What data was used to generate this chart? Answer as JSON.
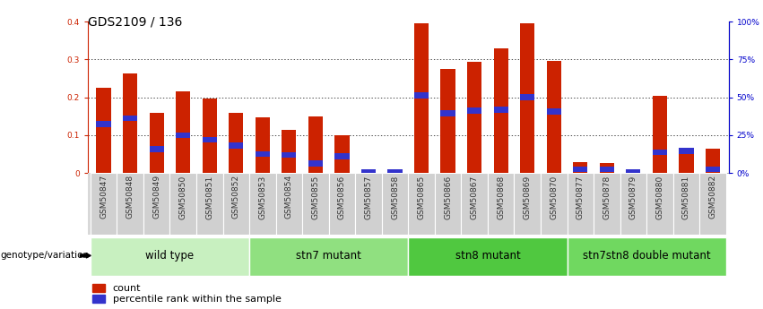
{
  "title": "GDS2109 / 136",
  "samples": [
    "GSM50847",
    "GSM50848",
    "GSM50849",
    "GSM50850",
    "GSM50851",
    "GSM50852",
    "GSM50853",
    "GSM50854",
    "GSM50855",
    "GSM50856",
    "GSM50857",
    "GSM50858",
    "GSM50865",
    "GSM50866",
    "GSM50867",
    "GSM50868",
    "GSM50869",
    "GSM50870",
    "GSM50877",
    "GSM50878",
    "GSM50879",
    "GSM50880",
    "GSM50881",
    "GSM50882"
  ],
  "red_values": [
    0.225,
    0.262,
    0.16,
    0.215,
    0.197,
    0.16,
    0.148,
    0.115,
    0.15,
    0.1,
    0.005,
    0.005,
    0.395,
    0.275,
    0.295,
    0.33,
    0.395,
    0.297,
    0.028,
    0.027,
    0.005,
    0.205,
    0.055,
    0.065
  ],
  "blue_values": [
    0.13,
    0.145,
    0.063,
    0.1,
    0.088,
    0.073,
    0.05,
    0.048,
    0.025,
    0.045,
    0.003,
    0.003,
    0.205,
    0.158,
    0.165,
    0.168,
    0.2,
    0.163,
    0.01,
    0.01,
    0.003,
    0.055,
    0.058,
    0.01
  ],
  "groups": [
    {
      "label": "wild type",
      "start": 0,
      "end": 6,
      "color": "#c8f0c0"
    },
    {
      "label": "stn7 mutant",
      "start": 6,
      "end": 12,
      "color": "#90e080"
    },
    {
      "label": "stn8 mutant",
      "start": 12,
      "end": 18,
      "color": "#50c840"
    },
    {
      "label": "stn7stn8 double mutant",
      "start": 18,
      "end": 24,
      "color": "#70d860"
    }
  ],
  "ylim": [
    0,
    0.4
  ],
  "yticks": [
    0.0,
    0.1,
    0.2,
    0.3,
    0.4
  ],
  "ytick_labels_left": [
    "0",
    "0.1",
    "0.2",
    "0.3",
    "0.4"
  ],
  "ytick_labels_right": [
    "0%",
    "25%",
    "50%",
    "75%",
    "100%"
  ],
  "red_color": "#cc2200",
  "blue_color": "#3333cc",
  "bar_width": 0.55,
  "title_fontsize": 10,
  "tick_fontsize": 6.5,
  "group_label_fontsize": 8.5,
  "legend_fontsize": 8,
  "left_yaxis_color": "#cc2200",
  "right_yaxis_color": "#0000cc",
  "blue_bar_height": 0.016
}
